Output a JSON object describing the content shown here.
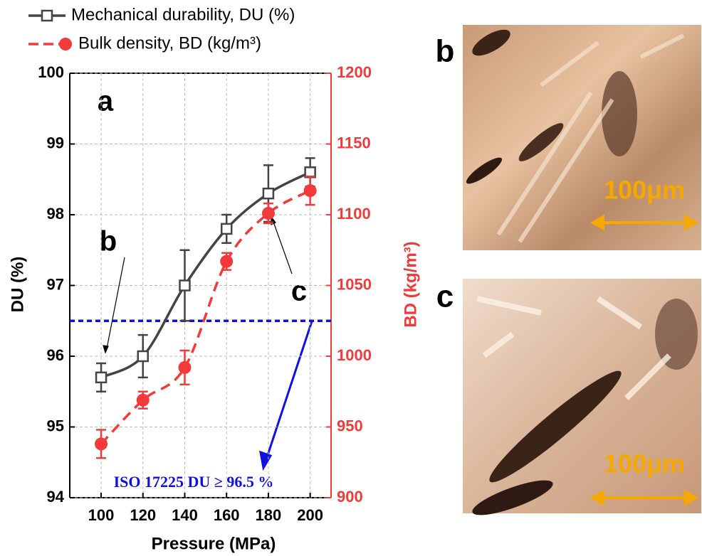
{
  "chart_data": {
    "type": "line",
    "x": [
      100,
      120,
      140,
      160,
      180,
      200
    ],
    "xlim": [
      85,
      210
    ],
    "xticks": [
      100,
      120,
      140,
      160,
      180,
      200
    ],
    "ylim": [
      94,
      100
    ],
    "yticks": [
      94,
      95,
      96,
      97,
      98,
      99,
      100
    ],
    "y2lim": [
      900,
      1200
    ],
    "y2ticks": [
      900,
      950,
      1000,
      1050,
      1100,
      1150,
      1200
    ],
    "x_label": "Pressure (MPa)",
    "y_label": "DU (%)",
    "y2_label": "BD (kg/m³)",
    "grid": true,
    "series": [
      {
        "name": "Mechanical durability, DU (%)",
        "color": "#444444",
        "marker": "square",
        "values": [
          95.7,
          96.0,
          97.0,
          97.8,
          98.3,
          98.6
        ],
        "errors": [
          0.2,
          0.3,
          0.5,
          0.2,
          0.4,
          0.2
        ]
      },
      {
        "name": "Bulk density, BD (kg/m³)",
        "color": "#f23a3a",
        "marker": "circle",
        "axis": "y2",
        "dashed": true,
        "values": [
          938,
          969,
          992,
          1067,
          1101,
          1117
        ],
        "errors": [
          10,
          6,
          12,
          6,
          7,
          10
        ]
      }
    ],
    "reference_line": {
      "value": 96.5,
      "color": "#1010e0",
      "label": "ISO 17225 DU ≥ 96.5 %"
    },
    "annotations": [
      "a",
      "b",
      "c"
    ]
  },
  "panels": [
    {
      "label": "b",
      "scale": "100μm"
    },
    {
      "label": "c",
      "scale": "100μm"
    }
  ]
}
